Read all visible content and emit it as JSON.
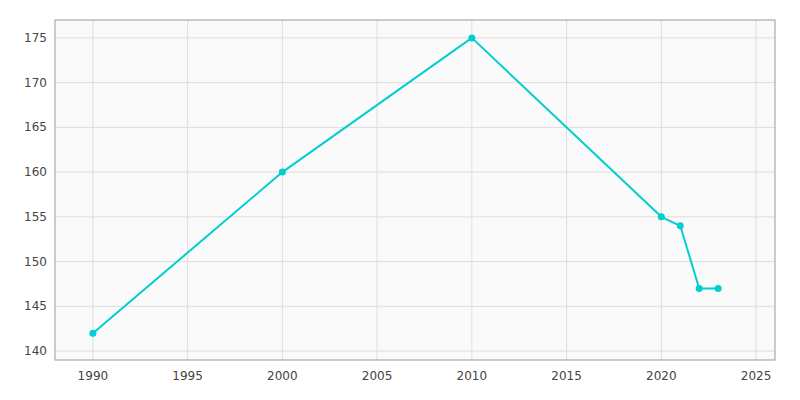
{
  "chart_data": {
    "type": "line",
    "x": [
      1990,
      2000,
      2010,
      2020,
      2021,
      2022,
      2023
    ],
    "values": [
      142,
      160,
      175,
      155,
      154,
      147,
      147
    ],
    "color": "#00CED1",
    "marker": "circle",
    "xlim": [
      1988,
      2026
    ],
    "ylim": [
      139,
      177
    ],
    "xticks": [
      1990,
      1995,
      2000,
      2005,
      2010,
      2015,
      2020,
      2025
    ],
    "yticks": [
      140,
      145,
      150,
      155,
      160,
      165,
      170,
      175
    ],
    "grid": true
  }
}
